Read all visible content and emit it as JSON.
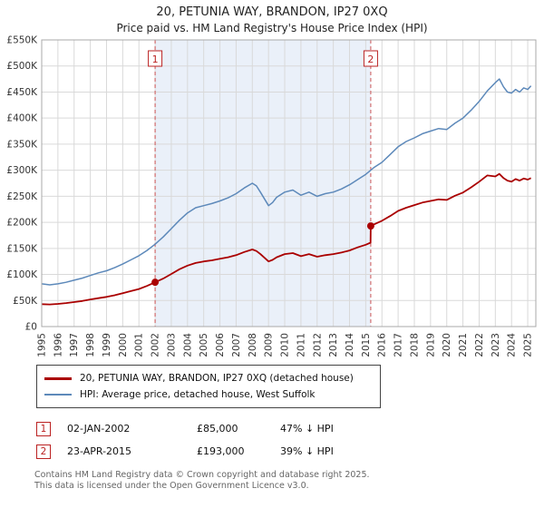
{
  "title": "20, PETUNIA WAY, BRANDON, IP27 0XQ",
  "subtitle": "Price paid vs. HM Land Registry's House Price Index (HPI)",
  "chart_data": {
    "type": "line",
    "xlim": [
      1995,
      2025.5
    ],
    "ylim": [
      0,
      550
    ],
    "grid": true,
    "y_ticks": [
      {
        "value": 0,
        "label": "£0"
      },
      {
        "value": 50,
        "label": "£50K"
      },
      {
        "value": 100,
        "label": "£100K"
      },
      {
        "value": 150,
        "label": "£150K"
      },
      {
        "value": 200,
        "label": "£200K"
      },
      {
        "value": 250,
        "label": "£250K"
      },
      {
        "value": 300,
        "label": "£300K"
      },
      {
        "value": 350,
        "label": "£350K"
      },
      {
        "value": 400,
        "label": "£400K"
      },
      {
        "value": 450,
        "label": "£450K"
      },
      {
        "value": 500,
        "label": "£500K"
      },
      {
        "value": 550,
        "label": "£550K"
      }
    ],
    "x_ticks": [
      1995,
      1996,
      1997,
      1998,
      1999,
      2000,
      2001,
      2002,
      2003,
      2004,
      2005,
      2006,
      2007,
      2008,
      2009,
      2010,
      2011,
      2012,
      2013,
      2014,
      2015,
      2016,
      2017,
      2018,
      2019,
      2020,
      2021,
      2022,
      2023,
      2024,
      2025
    ],
    "shaded_region": {
      "from": 2002.0,
      "to": 2015.31,
      "color": "#eaf0f9"
    },
    "vlines": [
      {
        "x": 2002.0,
        "label": "1",
        "color": "#cc5555"
      },
      {
        "x": 2015.31,
        "label": "2",
        "color": "#cc5555"
      }
    ],
    "markers": [
      {
        "x": 2002.0,
        "value": 85,
        "label": "1"
      },
      {
        "x": 2015.31,
        "value": 193,
        "label": "2"
      }
    ],
    "series": [
      {
        "name": "20, PETUNIA WAY, BRANDON, IP27 0XQ (detached house)",
        "color": "#aa0000",
        "width": 1.8,
        "x": [
          1995,
          1995.5,
          1996,
          1996.5,
          1997,
          1997.5,
          1998,
          1998.5,
          1999,
          1999.5,
          2000,
          2000.5,
          2001,
          2001.5,
          2002,
          2002.5,
          2003,
          2003.5,
          2004,
          2004.5,
          2005,
          2005.5,
          2006,
          2006.5,
          2007,
          2007.5,
          2008,
          2008.25,
          2008.5,
          2009,
          2009.25,
          2009.5,
          2010,
          2010.5,
          2011,
          2011.5,
          2012,
          2012.5,
          2013,
          2013.5,
          2014,
          2014.5,
          2015,
          2015.3,
          2015.31,
          2015.5,
          2016,
          2016.5,
          2017,
          2017.5,
          2018,
          2018.5,
          2019,
          2019.5,
          2020,
          2020.5,
          2021,
          2021.5,
          2022,
          2022.5,
          2023,
          2023.25,
          2023.5,
          2023.75,
          2024,
          2024.25,
          2024.5,
          2024.75,
          2025,
          2025.2
        ],
        "values": [
          43,
          42.5,
          43.5,
          45,
          47,
          49,
          52,
          54.5,
          57,
          60,
          64,
          68,
          72,
          78,
          85,
          92,
          101,
          110,
          117,
          122,
          125,
          127,
          130,
          133,
          137,
          143,
          148,
          145,
          139,
          125,
          128,
          133,
          139,
          141,
          135,
          139,
          134,
          137,
          139,
          142,
          146,
          152,
          157,
          161,
          193,
          196,
          203,
          212,
          222,
          228,
          233,
          238,
          241,
          244,
          243,
          251,
          257,
          267,
          278,
          290,
          288,
          293,
          285,
          280,
          278,
          283,
          280,
          284,
          282,
          285
        ]
      },
      {
        "name": "HPI: Average price, detached house, West Suffolk",
        "color": "#5d89ba",
        "width": 1.5,
        "x": [
          1995,
          1995.5,
          1996,
          1996.5,
          1997,
          1997.5,
          1998,
          1998.5,
          1999,
          1999.5,
          2000,
          2000.5,
          2001,
          2001.5,
          2002,
          2002.5,
          2003,
          2003.5,
          2004,
          2004.5,
          2005,
          2005.5,
          2006,
          2006.5,
          2007,
          2007.5,
          2008,
          2008.25,
          2008.5,
          2009,
          2009.25,
          2009.5,
          2010,
          2010.5,
          2011,
          2011.5,
          2012,
          2012.5,
          2013,
          2013.5,
          2014,
          2014.5,
          2015,
          2015.5,
          2016,
          2016.5,
          2017,
          2017.5,
          2018,
          2018.5,
          2019,
          2019.5,
          2020,
          2020.5,
          2021,
          2021.5,
          2022,
          2022.5,
          2023,
          2023.25,
          2023.5,
          2023.75,
          2024,
          2024.25,
          2024.5,
          2024.75,
          2025,
          2025.2
        ],
        "values": [
          82,
          80,
          82,
          85,
          89,
          93,
          98,
          103,
          107,
          113,
          120,
          128,
          136,
          146,
          158,
          172,
          188,
          204,
          218,
          228,
          232,
          236,
          241,
          247,
          255,
          266,
          275,
          270,
          258,
          232,
          238,
          248,
          258,
          262,
          252,
          258,
          250,
          255,
          258,
          264,
          272,
          282,
          292,
          305,
          315,
          330,
          345,
          355,
          362,
          370,
          375,
          380,
          378,
          390,
          400,
          415,
          432,
          452,
          468,
          475,
          460,
          450,
          448,
          455,
          450,
          458,
          455,
          462
        ]
      }
    ]
  },
  "annotations": [
    {
      "num": "1",
      "date": "02-JAN-2002",
      "price": "£85,000",
      "delta": "47% ↓ HPI"
    },
    {
      "num": "2",
      "date": "23-APR-2015",
      "price": "£193,000",
      "delta": "39% ↓ HPI"
    }
  ],
  "footer": {
    "line1": "Contains HM Land Registry data © Crown copyright and database right 2025.",
    "line2": "This data is licensed under the Open Government Licence v3.0."
  }
}
